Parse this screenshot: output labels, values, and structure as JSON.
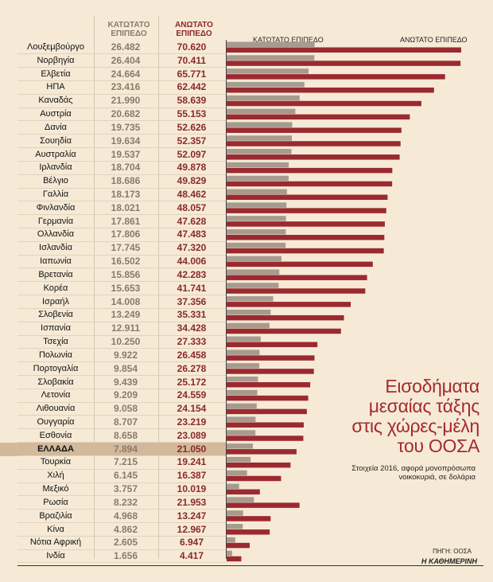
{
  "header": {
    "low_label": "ΚΑΤΩΤΑΤΟ ΕΠΙΠΕΔΟ",
    "high_label": "ΑΝΩΤΑΤΟ ΕΠΙΠΕΔΟ",
    "low_bar_label": "ΚΑΤΩΤΑΤΟ ΕΠΙΠΕΔΟ",
    "high_bar_label": "ΑΝΩΤΑΤΟ ΕΠΙΠΕΔΟ"
  },
  "title": "Εισοδήματα μεσαίας τάξης στις χώρες-μέλη του ΟΟΣΑ",
  "subtitle": "Στοιχεία 2016, αφορά μονοπρόσωπα νοικοκυριά, σε δολάρια",
  "source": "ΠΗΓΗ: ΟΟΣΑ",
  "credit": "Η ΚΑΘΗΜΕΡΙΝΗ",
  "colors": {
    "low": "#a79a8e",
    "high": "#9b2a30",
    "highlight": "#d2b99b"
  },
  "chart_data": {
    "type": "bar",
    "orientation": "horizontal",
    "categories": [
      "Λουξεμβούργο",
      "Νορβηγία",
      "Ελβετία",
      "ΗΠΑ",
      "Καναδάς",
      "Αυστρία",
      "Δανία",
      "Σουηδία",
      "Αυστραλία",
      "Ιρλανδία",
      "Βέλγιο",
      "Γαλλία",
      "Φινλανδία",
      "Γερμανία",
      "Ολλανδία",
      "Ισλανδία",
      "Ιαπωνία",
      "Βρετανία",
      "Κορέα",
      "Ισραήλ",
      "Σλοβενία",
      "Ισπανία",
      "Τσεχία",
      "Πολωνία",
      "Πορτογαλία",
      "Σλοβακία",
      "Λετονία",
      "Λιθουανία",
      "Ουγγαρία",
      "Εσθονία",
      "ΕΛΛΑΔΑ",
      "Τουρκία",
      "Χιλή",
      "Μεξικό",
      "Ρωσία",
      "Βραζιλία",
      "Κίνα",
      "Νότια Αφρική",
      "Ινδία"
    ],
    "series": [
      {
        "name": "ΚΑΤΩΤΑΤΟ ΕΠΙΠΕΔΟ",
        "values": [
          26482,
          26404,
          24664,
          23416,
          21990,
          20682,
          19735,
          19634,
          19537,
          18704,
          18686,
          18173,
          18021,
          17861,
          17806,
          17745,
          16502,
          15856,
          15653,
          14008,
          13249,
          12911,
          10250,
          9922,
          9854,
          9439,
          9209,
          9058,
          8707,
          8658,
          7894,
          7215,
          6145,
          3757,
          8232,
          4968,
          4862,
          2605,
          1656
        ]
      },
      {
        "name": "ΑΝΩΤΑΤΟ ΕΠΙΠΕΔΟ",
        "values": [
          70620,
          70411,
          65771,
          62442,
          58639,
          55153,
          52626,
          52357,
          52097,
          49878,
          49829,
          48462,
          48057,
          47628,
          47483,
          47320,
          44006,
          42283,
          41741,
          37356,
          35331,
          34428,
          27333,
          26458,
          26278,
          25172,
          24559,
          24154,
          23219,
          23089,
          21050,
          19241,
          16387,
          10019,
          21953,
          13247,
          12967,
          6947,
          4417
        ]
      }
    ],
    "display_low": [
      "26.482",
      "26.404",
      "24.664",
      "23.416",
      "21.990",
      "20.682",
      "19.735",
      "19.634",
      "19.537",
      "18.704",
      "18.686",
      "18.173",
      "18.021",
      "17.861",
      "17.806",
      "17.745",
      "16.502",
      "15.856",
      "15.653",
      "14.008",
      "13.249",
      "12.911",
      "10.250",
      "9.922",
      "9.854",
      "9.439",
      "9.209",
      "9.058",
      "8.707",
      "8.658",
      "7.894",
      "7.215",
      "6.145",
      "3.757",
      "8.232",
      "4.968",
      "4.862",
      "2.605",
      "1.656"
    ],
    "display_high": [
      "70.620",
      "70.411",
      "65.771",
      "62.442",
      "58.639",
      "55.153",
      "52.626",
      "52.357",
      "52.097",
      "49.878",
      "49.829",
      "48.462",
      "48.057",
      "47.628",
      "47.483",
      "47.320",
      "44.006",
      "42.283",
      "41.741",
      "37.356",
      "35.331",
      "34.428",
      "27.333",
      "26.458",
      "26.278",
      "25.172",
      "24.559",
      "24.154",
      "23.219",
      "23.089",
      "21.050",
      "19.241",
      "16.387",
      "10.019",
      "21.953",
      "13.247",
      "12.967",
      "6.947",
      "4.417"
    ],
    "highlight_category": "ΕΛΛΑΔΑ"
  }
}
